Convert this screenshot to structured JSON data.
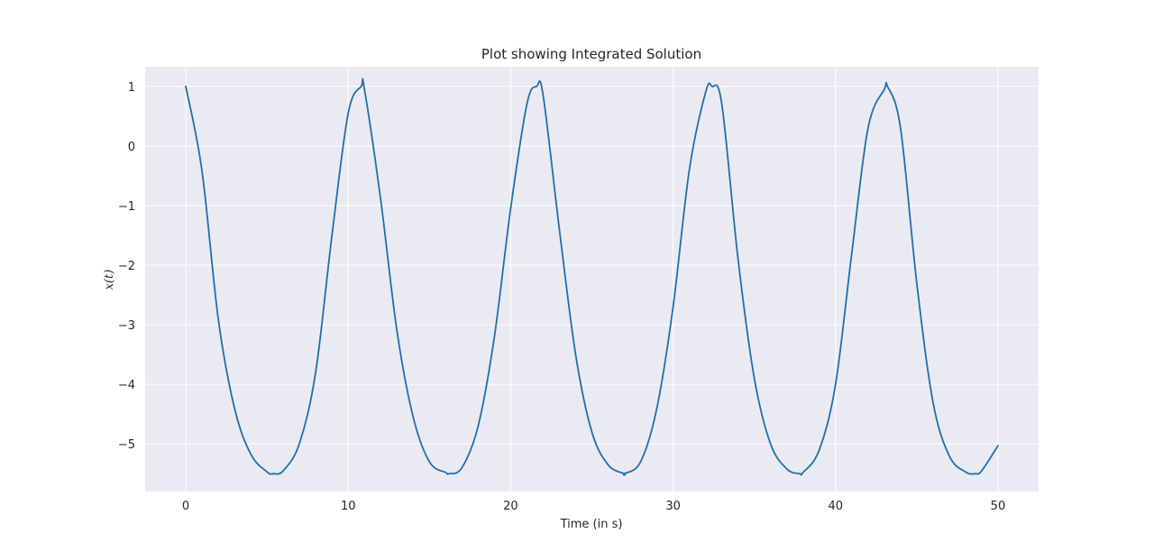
{
  "chart_data": {
    "type": "line",
    "title": "Plot showing Integrated Solution",
    "xlabel": "Time (in s)",
    "ylabel": "x(t)",
    "xlim": [
      -2.5,
      52.5
    ],
    "ylim": [
      -5.8,
      1.33
    ],
    "x_ticks": [
      0,
      10,
      20,
      30,
      40,
      50
    ],
    "y_ticks": [
      1,
      0,
      -1,
      -2,
      -3,
      -4,
      -5
    ],
    "x_tick_labels": [
      "0",
      "10",
      "20",
      "30",
      "40",
      "50"
    ],
    "y_tick_labels": [
      "1",
      "0",
      "−1",
      "−2",
      "−3",
      "−4",
      "−5"
    ],
    "grid": true,
    "colors": {
      "plot_background": "#eaeaf2",
      "grid": "#ffffff",
      "line": "#1f6fad",
      "text": "#262626"
    },
    "series": [
      {
        "x": [
          0,
          1,
          2,
          3,
          4,
          5,
          5.4,
          6,
          7,
          8,
          9,
          10,
          10.8,
          11,
          12,
          13,
          14,
          15,
          16,
          16.2,
          17,
          18,
          19,
          20,
          21,
          21.6,
          22,
          23,
          24,
          25,
          26,
          27,
          27.0,
          28,
          29,
          30,
          31,
          32,
          32.4,
          33,
          34,
          35,
          36,
          37,
          37.8,
          38,
          39,
          40,
          41,
          42,
          43,
          43.2,
          44,
          45,
          46,
          47,
          48,
          48.6,
          49,
          50
        ],
        "y": [
          1,
          -0.42,
          -2.9,
          -4.4,
          -5.17,
          -5.47,
          -5.5,
          -5.45,
          -4.99,
          -3.79,
          -1.5,
          0.55,
          1,
          0.95,
          -0.9,
          -3.1,
          -4.55,
          -5.3,
          -5.48,
          -5.5,
          -5.4,
          -4.7,
          -3.2,
          -1.05,
          0.7,
          1,
          0.85,
          -1.4,
          -3.5,
          -4.8,
          -5.35,
          -5.5,
          -5.5,
          -5.3,
          -4.4,
          -2.7,
          -0.4,
          0.9,
          1,
          0.7,
          -1.9,
          -3.9,
          -5.0,
          -5.42,
          -5.5,
          -5.48,
          -5.1,
          -4.0,
          -1.8,
          0.3,
          0.95,
          1,
          0.3,
          -2.3,
          -4.3,
          -5.2,
          -5.47,
          -5.5,
          -5.45,
          -5.03
        ]
      }
    ]
  }
}
